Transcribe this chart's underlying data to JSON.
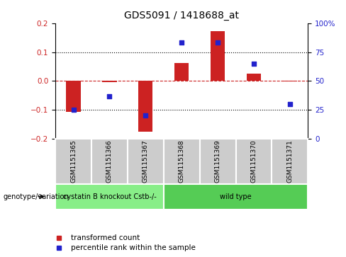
{
  "title": "GDS5091 / 1418688_at",
  "samples": [
    "GSM1151365",
    "GSM1151366",
    "GSM1151367",
    "GSM1151368",
    "GSM1151369",
    "GSM1151370",
    "GSM1151371"
  ],
  "bar_values": [
    -0.108,
    -0.005,
    -0.175,
    0.063,
    0.172,
    0.025,
    -0.002
  ],
  "dot_values": [
    25,
    37,
    20,
    83,
    83,
    65,
    30
  ],
  "ylim_left": [
    -0.2,
    0.2
  ],
  "ylim_right": [
    0,
    100
  ],
  "bar_color": "#cc2222",
  "dot_color": "#2222cc",
  "sample_bg_color": "#cccccc",
  "groups": [
    {
      "label": "cystatin B knockout Cstb-/-",
      "start": 0,
      "end": 3,
      "color": "#88ee88"
    },
    {
      "label": "wild type",
      "start": 3,
      "end": 7,
      "color": "#55cc55"
    }
  ],
  "legend_items": [
    {
      "label": "transformed count",
      "color": "#cc2222"
    },
    {
      "label": "percentile rank within the sample",
      "color": "#2222cc"
    }
  ],
  "genotype_label": "genotype/variation",
  "sample_fontsize": 6.5,
  "title_fontsize": 10,
  "dotted_line_color": "black",
  "zero_line_color": "#cc2222",
  "group_fontsize": 7,
  "tick_label_color_left": "#cc2222",
  "tick_label_color_right": "#2222cc",
  "legend_fontsize": 7.5,
  "bar_width": 0.4
}
